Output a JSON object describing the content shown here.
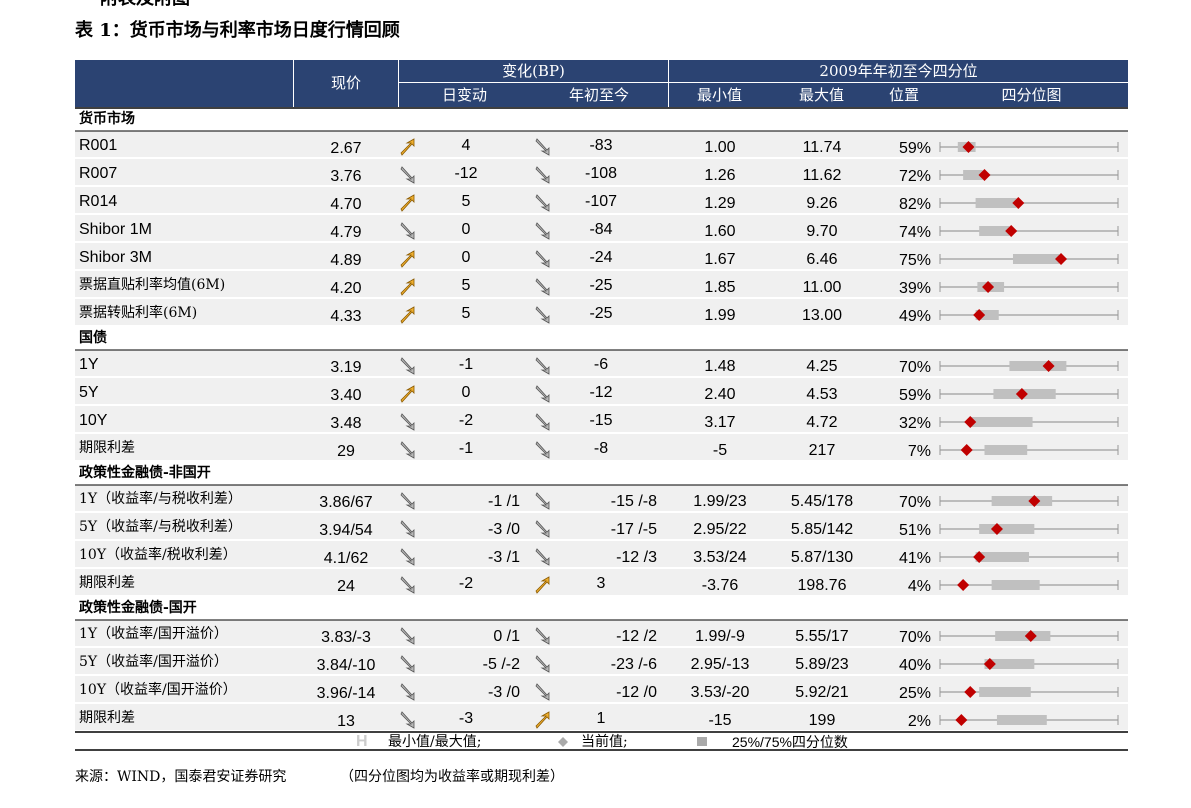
{
  "header": {
    "cut_title": "附表及附图",
    "title": "表 1：货币市场与利率市场日度行情回顾"
  },
  "table": {
    "columns": {
      "price": "现价",
      "change": "变化(BP)",
      "day": "日变动",
      "ytd": "年初至今",
      "quartile": "2009年年初至今四分位",
      "min": "最小值",
      "max": "最大值",
      "pos": "位置",
      "plot": "四分位图"
    },
    "sections": [
      {
        "title": "货币市场",
        "rows": [
          {
            "name": "R001",
            "price": "2.67",
            "day": "4",
            "ytd": "-83",
            "min": "1.00",
            "max": "11.74",
            "pos": "59%",
            "plot": [
              10,
              20,
              16
            ]
          },
          {
            "name": "R007",
            "price": "3.76",
            "day": "-12",
            "ytd": "-108",
            "min": "1.26",
            "max": "11.62",
            "pos": "72%",
            "plot": [
              13,
              24,
              25
            ]
          },
          {
            "name": "R014",
            "price": "4.70",
            "day": "5",
            "ytd": "-107",
            "min": "1.29",
            "max": "9.26",
            "pos": "82%",
            "plot": [
              20,
              43,
              44
            ]
          },
          {
            "name": "Shibor 1M",
            "price": "4.79",
            "day": "0",
            "ytd": "-84",
            "min": "1.60",
            "max": "9.70",
            "pos": "74%",
            "plot": [
              22,
              39,
              40
            ]
          },
          {
            "name": "Shibor 3M",
            "price": "4.89",
            "day": "0",
            "ytd": "-24",
            "min": "1.67",
            "max": "6.46",
            "pos": "75%",
            "plot": [
              41,
              67,
              68
            ]
          },
          {
            "name": "票据直贴利率均值(6M)",
            "price": "4.20",
            "day": "5",
            "ytd": "-25",
            "min": "1.85",
            "max": "11.00",
            "pos": "39%",
            "plot": [
              21,
              36,
              27
            ]
          },
          {
            "name": "票据转贴利率(6M)",
            "price": "4.33",
            "day": "5",
            "ytd": "-25",
            "min": "1.99",
            "max": "13.00",
            "pos": "49%",
            "plot": [
              20,
              33,
              22
            ]
          }
        ]
      },
      {
        "title": "国债",
        "rows": [
          {
            "name": "1Y",
            "price": "3.19",
            "day": "-1",
            "ytd": "-6",
            "min": "1.48",
            "max": "4.25",
            "pos": "70%",
            "plot": [
              39,
              71,
              61
            ]
          },
          {
            "name": "5Y",
            "price": "3.40",
            "day": "0",
            "ytd": "-12",
            "min": "2.40",
            "max": "4.53",
            "pos": "59%",
            "plot": [
              30,
              65,
              46
            ]
          },
          {
            "name": "10Y",
            "price": "3.48",
            "day": "-2",
            "ytd": "-15",
            "min": "3.17",
            "max": "4.72",
            "pos": "32%",
            "plot": [
              17,
              52,
              17
            ]
          },
          {
            "name": "期限利差",
            "price": "29",
            "day": "-1",
            "ytd": "-8",
            "min": "-5",
            "max": "217",
            "pos": "7%",
            "plot": [
              25,
              49,
              15
            ]
          }
        ]
      },
      {
        "title": "政策性金融债-非国开",
        "rows": [
          {
            "name": "1Y（收益率/与税收利差）",
            "price": "3.86/67",
            "day": "-1 /1",
            "ytd": "-15 /-8",
            "min": "1.99/23",
            "max": "5.45/178",
            "pos": "70%",
            "plot": [
              29,
              63,
              53
            ]
          },
          {
            "name": "5Y（收益率/与税收利差）",
            "price": "3.94/54",
            "day": "-3 /0",
            "ytd": "-17 /-5",
            "min": "2.95/22",
            "max": "5.85/142",
            "pos": "51%",
            "plot": [
              22,
              53,
              32
            ]
          },
          {
            "name": "10Y（收益率/税收利差）",
            "price": "4.1/62",
            "day": "-3 /1",
            "ytd": "-12 /3",
            "min": "3.53/24",
            "max": "5.87/130",
            "pos": "41%",
            "plot": [
              20,
              50,
              22
            ]
          },
          {
            "name": "期限利差",
            "price": "24",
            "day": "-2",
            "ytd": "3",
            "min": "-3.76",
            "max": "198.76",
            "pos": "4%",
            "plot": [
              29,
              56,
              13
            ]
          }
        ]
      },
      {
        "title": "政策性金融债-国开",
        "rows": [
          {
            "name": "1Y（收益率/国开溢价）",
            "price": "3.83/-3",
            "day": "0 /1",
            "ytd": "-12 /2",
            "min": "1.99/-9",
            "max": "5.55/17",
            "pos": "70%",
            "plot": [
              31,
              62,
              51
            ]
          },
          {
            "name": "5Y（收益率/国开溢价）",
            "price": "3.84/-10",
            "day": "-5 /-2",
            "ytd": "-23 /-6",
            "min": "2.95/-13",
            "max": "5.89/23",
            "pos": "40%",
            "plot": [
              25,
              53,
              28
            ]
          },
          {
            "name": "10Y（收益率/国开溢价）",
            "price": "3.96/-14",
            "day": "-3 /0",
            "ytd": "-12 /0",
            "min": "3.53/-20",
            "max": "5.92/21",
            "pos": "25%",
            "plot": [
              22,
              51,
              17
            ]
          },
          {
            "name": "期限利差",
            "price": "13",
            "day": "-3",
            "ytd": "1",
            "min": "-15",
            "max": "199",
            "pos": "2%",
            "plot": [
              32,
              60,
              12
            ]
          }
        ]
      }
    ]
  },
  "legend": {
    "minmax": "最小值/最大值;",
    "current": "当前值;",
    "quartile": "25%/75%四分位数"
  },
  "footer": {
    "source": "来源：WIND，国泰君安证券研究",
    "note": "（四分位图均为收益率或期现利差）"
  }
}
